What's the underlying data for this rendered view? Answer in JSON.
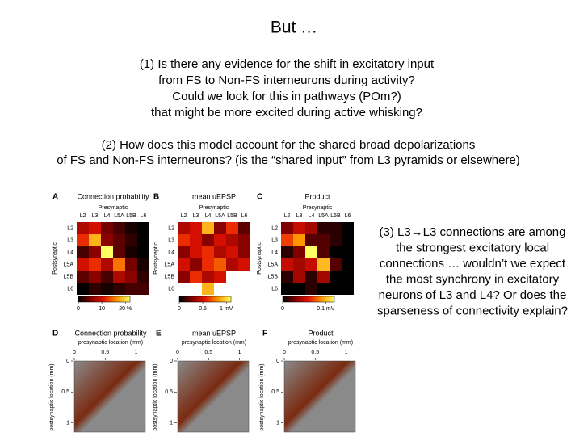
{
  "title": "But …",
  "question1": [
    "(1)  Is there any evidence for the shift in excitatory input",
    "from FS to Non-FS interneurons during activity?",
    "Could we look for this in pathways (POm?)",
    "that might be more excited during active whisking?"
  ],
  "question2": [
    "(2) How does this model account for the shared broad depolarizations",
    "of FS and Non-FS interneurons? (is the “shared input” from L3 pyramids or elsewhere)"
  ],
  "question3": [
    "(3) L3→L3 connections are among",
    "the strongest excitatory local",
    "connections …  wouldn’t we expect",
    "the most synchrony in excitatory",
    "neurons of L3 and L4?  Or does the",
    "sparseness of connectivity explain?"
  ],
  "panels": [
    {
      "letter": "A",
      "title": "Connection probability",
      "x_label": "Presynaptic",
      "y_label": "Postsynaptic",
      "columns": [
        "L2",
        "L3",
        "L4",
        "L5A",
        "L5B",
        "L6"
      ],
      "rows": [
        "L2",
        "L3",
        "L4",
        "L5A",
        "L5B",
        "L6"
      ],
      "matrix": [
        [
          8,
          10,
          5,
          3,
          1,
          0
        ],
        [
          12,
          18,
          6,
          4,
          2,
          0
        ],
        [
          3,
          6,
          22,
          4,
          1,
          0
        ],
        [
          10,
          12,
          8,
          15,
          5,
          1
        ],
        [
          4,
          6,
          3,
          8,
          6,
          2
        ],
        [
          0,
          2,
          1,
          2,
          3,
          3
        ]
      ],
      "clim": [
        0,
        22
      ],
      "colorbar_ticks": [
        0,
        10,
        {
          "value": 20,
          "label": "20 %"
        }
      ]
    },
    {
      "letter": "B",
      "title": "mean uEPSP",
      "x_label": "Presynaptic",
      "y_label": "Postsynaptic",
      "columns": [
        "L2",
        "L3",
        "L4",
        "L5A",
        "L5B",
        "L6"
      ],
      "rows": [
        "L2",
        "L3",
        "L4",
        "L5A",
        "L5B",
        "L6"
      ],
      "matrix": [
        [
          0.4,
          0.5,
          0.9,
          0.3,
          0.6,
          0.2
        ],
        [
          0.6,
          0.5,
          0.3,
          0.5,
          0.4,
          0.3
        ],
        [
          0.3,
          0.5,
          0.6,
          0.4,
          0.5,
          0.3
        ],
        [
          0.5,
          0.3,
          0.6,
          0.7,
          0.4,
          0.5
        ],
        [
          0.3,
          0.6,
          0.4,
          0.5,
          null,
          null
        ],
        [
          null,
          null,
          0.9,
          null,
          null,
          null
        ]
      ],
      "clim": [
        0,
        1.1
      ],
      "colorbar_ticks": [
        0,
        0.5,
        {
          "value": 1,
          "label": "1 mV"
        }
      ]
    },
    {
      "letter": "C",
      "title": "Product",
      "x_label": "Presynaptic",
      "y_label": "Postsynaptic",
      "columns": [
        "L2",
        "L3",
        "L4",
        "L5A",
        "L5B",
        "L6"
      ],
      "rows": [
        "L2",
        "L3",
        "L4",
        "L5A",
        "L5B",
        "L6"
      ],
      "matrix": [
        [
          0.03,
          0.05,
          0.04,
          0.01,
          0.01,
          0
        ],
        [
          0.07,
          0.09,
          0.02,
          0.02,
          0.01,
          0
        ],
        [
          0.01,
          0.03,
          0.12,
          0.02,
          0,
          0
        ],
        [
          0.05,
          0.04,
          0.05,
          0.1,
          0.02,
          0
        ],
        [
          0.01,
          0.04,
          0.01,
          0.04,
          0,
          0
        ],
        [
          0,
          0,
          0.01,
          0,
          0,
          0
        ]
      ],
      "clim": [
        0,
        0.12
      ],
      "colorbar_ticks": [
        0,
        {
          "value": 0.1,
          "label": "0.1 mV"
        }
      ]
    }
  ],
  "panels_bottom": [
    {
      "letter": "D",
      "title": "Connection probability",
      "x_label": "presynaptic location (mm)",
      "y_label": "postsynaptic location (mm)",
      "xticks": [
        0,
        0.5,
        1
      ],
      "yticks": [
        0,
        0.5,
        1
      ],
      "lim": [
        0,
        1.15
      ]
    },
    {
      "letter": "E",
      "title": "mean uEPSP",
      "x_label": "presynaptic location (mm)",
      "y_label": "postsynaptic location (mm)",
      "xticks": [
        0,
        0.5,
        1
      ],
      "yticks": [
        0,
        0.5,
        1
      ],
      "lim": [
        0,
        1.15
      ]
    },
    {
      "letter": "F",
      "title": "Product",
      "x_label": "presynaptic location (mm)",
      "y_label": "postsynaptic location (mm)",
      "xticks": [
        0,
        0.5,
        1
      ],
      "yticks": [
        0,
        0.5,
        1
      ],
      "lim": [
        0,
        1.15
      ]
    }
  ]
}
